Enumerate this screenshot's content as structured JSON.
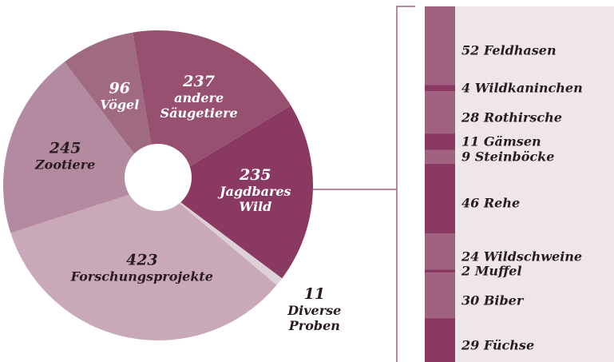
{
  "chart_data": [
    {
      "type": "pie",
      "categories": [
        "Jagdbares Wild",
        "Diverse Proben",
        "Forschungsprojekte",
        "Zootiere",
        "Vögel",
        "andere Säugetiere"
      ],
      "values": [
        235,
        11,
        423,
        245,
        96,
        237
      ],
      "colors": [
        "#8a3a62",
        "#ddd0d6",
        "#c9a9b9",
        "#b48aa0",
        "#a06a82",
        "#97506f"
      ]
    },
    {
      "type": "bar",
      "categories": [
        "Feldhasen",
        "Wildkaninchen",
        "Rothirsche",
        "Gämsen",
        "Steinböcke",
        "Rehe",
        "Wildschweine",
        "Muffel",
        "Biber",
        "Füchse"
      ],
      "values": [
        52,
        4,
        28,
        11,
        9,
        46,
        24,
        2,
        30,
        29
      ],
      "colors": [
        "#a0627f",
        "#8a3a62",
        "#a0627f",
        "#8a3a62",
        "#a0627f",
        "#8a3a62",
        "#a0627f",
        "#8a3a62",
        "#a0627f",
        "#8a3a62"
      ]
    }
  ]
}
